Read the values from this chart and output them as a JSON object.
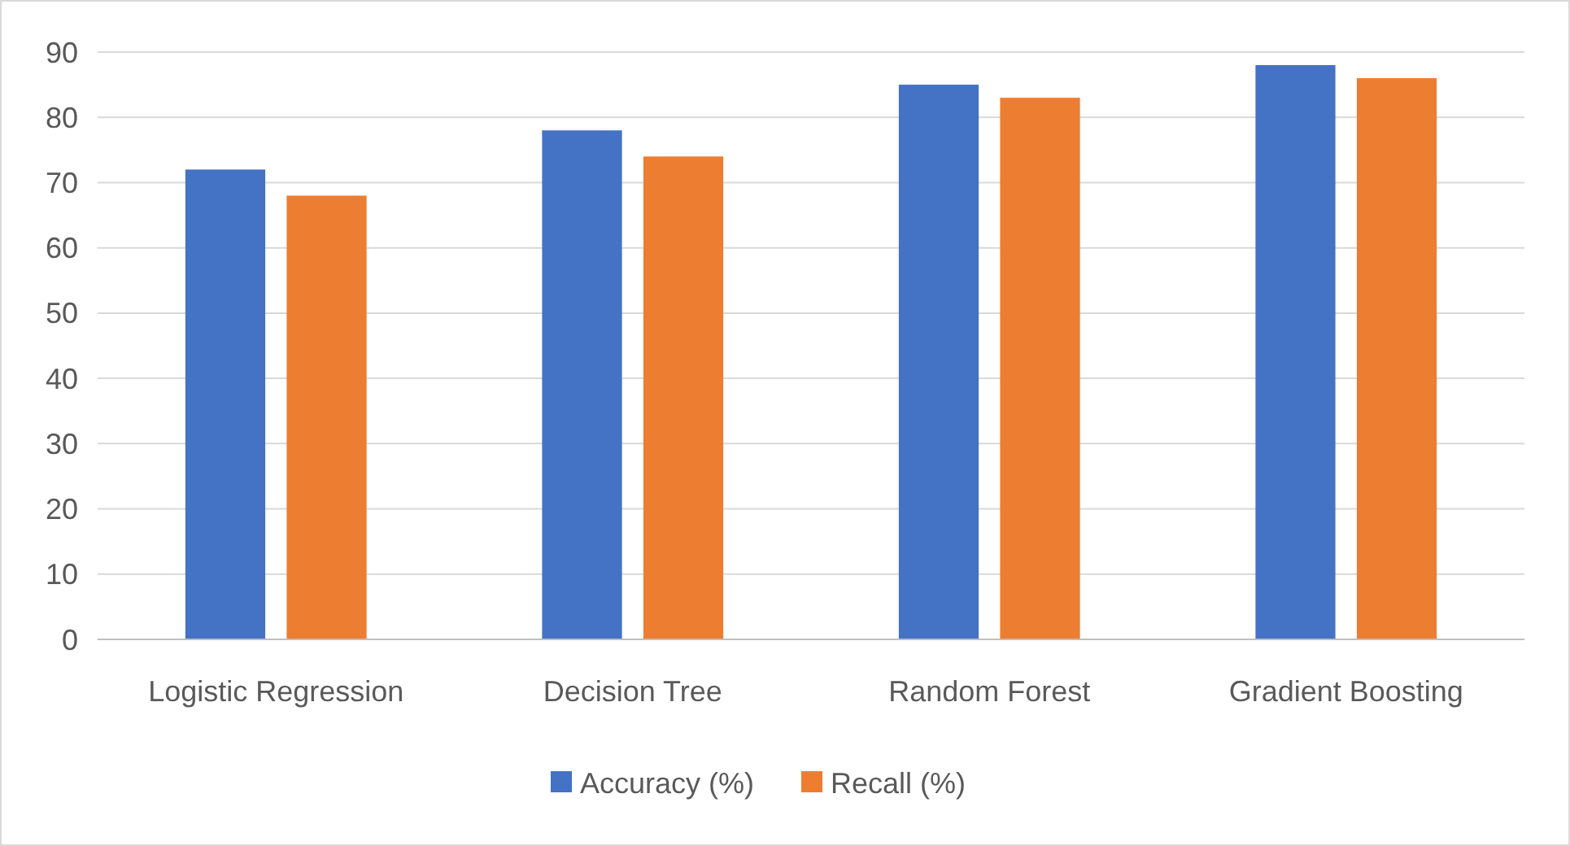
{
  "chart_data": {
    "type": "bar",
    "categories": [
      "Logistic Regression",
      "Decision Tree",
      "Random Forest",
      "Gradient Boosting"
    ],
    "series": [
      {
        "name": "Accuracy (%)",
        "color": "#4472c4",
        "values": [
          72,
          78,
          85,
          88
        ]
      },
      {
        "name": "Recall (%)",
        "color": "#ed7d31",
        "values": [
          68,
          74,
          83,
          86
        ]
      }
    ],
    "ylim": [
      0,
      90
    ],
    "yticks": [
      0,
      10,
      20,
      30,
      40,
      50,
      60,
      70,
      80,
      90
    ],
    "grid": true,
    "legend": "bottom"
  }
}
